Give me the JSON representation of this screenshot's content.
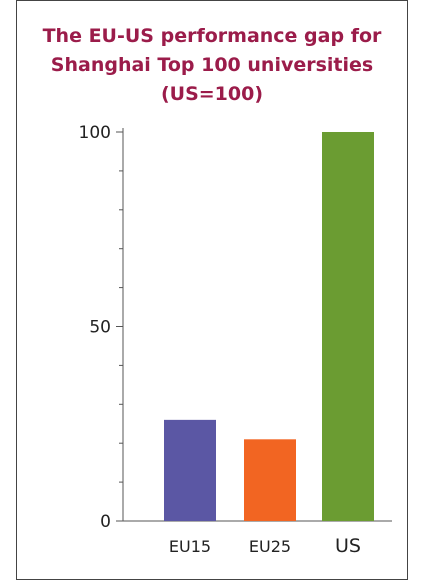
{
  "chart_data": {
    "type": "bar",
    "title_lines": [
      "The EU-US performance gap for",
      "Shanghai Top 100 universities",
      "(US=100)"
    ],
    "title": "The EU-US performance gap for Shanghai Top 100 universities (US=100)",
    "xlabel": "",
    "ylabel": "",
    "categories": [
      "EU15",
      "EU25",
      "US"
    ],
    "values": [
      26,
      21,
      100
    ],
    "ylim": [
      0,
      100
    ],
    "yticks": [
      0,
      50,
      100
    ],
    "colors": [
      "#5b57a4",
      "#f26522",
      "#6b9c32"
    ],
    "grid": false,
    "legend": "none"
  }
}
